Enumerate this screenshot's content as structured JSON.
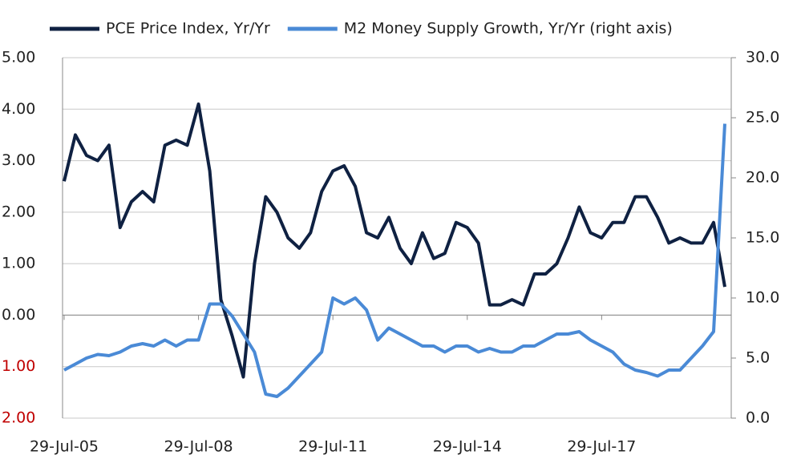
{
  "chart_data": {
    "type": "line",
    "categories": [
      "29-Jul-05",
      null,
      null,
      null,
      null,
      null,
      null,
      null,
      null,
      null,
      null,
      null,
      "29-Jul-08",
      null,
      null,
      null,
      null,
      null,
      null,
      null,
      null,
      null,
      null,
      null,
      "29-Jul-11",
      null,
      null,
      null,
      null,
      null,
      null,
      null,
      null,
      null,
      null,
      null,
      "29-Jul-14",
      null,
      null,
      null,
      null,
      null,
      null,
      null,
      null,
      null,
      null,
      null,
      "29-Jul-17",
      null,
      null,
      null,
      null,
      null,
      null,
      null,
      null,
      null,
      null,
      null
    ],
    "series": [
      {
        "name": "PCE Price Index, Yr/Yr",
        "color": "#0f2142",
        "axis": "y",
        "values": [
          2.6,
          3.5,
          3.1,
          3.0,
          3.3,
          1.7,
          2.2,
          2.4,
          2.2,
          3.3,
          3.4,
          3.3,
          4.1,
          2.8,
          0.3,
          -0.4,
          -1.2,
          1.0,
          2.3,
          2.0,
          1.5,
          1.3,
          1.6,
          2.4,
          2.8,
          2.9,
          2.5,
          1.6,
          1.5,
          1.9,
          1.3,
          1.0,
          1.6,
          1.1,
          1.2,
          1.8,
          1.7,
          1.4,
          0.2,
          0.2,
          0.3,
          0.2,
          0.8,
          0.8,
          1.0,
          1.5,
          2.1,
          1.6,
          1.5,
          1.8,
          1.8,
          2.3,
          2.3,
          1.9,
          1.4,
          1.5,
          1.4,
          1.4,
          1.8,
          0.55
        ]
      },
      {
        "name": "M2 Money Supply Growth, Yr/Yr (right axis)",
        "color": "#4a8ad6",
        "axis": "y2",
        "values": [
          4.0,
          4.5,
          5.0,
          5.3,
          5.2,
          5.5,
          6.0,
          6.2,
          6.0,
          6.5,
          6.0,
          6.5,
          6.5,
          9.5,
          9.5,
          8.5,
          7.0,
          5.5,
          2.0,
          1.8,
          2.5,
          3.5,
          4.5,
          5.5,
          10.0,
          9.5,
          10.0,
          9.0,
          6.5,
          7.5,
          7.0,
          6.5,
          6.0,
          6.0,
          5.5,
          6.0,
          6.0,
          5.5,
          5.8,
          5.5,
          5.5,
          6.0,
          6.0,
          6.5,
          7.0,
          7.0,
          7.2,
          6.5,
          6.0,
          5.5,
          4.5,
          4.0,
          3.8,
          3.5,
          4.0,
          4.0,
          5.0,
          6.0,
          7.2,
          24.5
        ]
      }
    ],
    "ylim": [
      -2,
      5
    ],
    "yticks": [
      {
        "value": 5,
        "label": "5.00"
      },
      {
        "value": 4,
        "label": "4.00"
      },
      {
        "value": 3,
        "label": "3.00"
      },
      {
        "value": 2,
        "label": "2.00"
      },
      {
        "value": 1,
        "label": "1.00"
      },
      {
        "value": 0,
        "label": "0.00"
      },
      {
        "value": -1,
        "label": "1.00"
      },
      {
        "value": -2,
        "label": "2.00"
      }
    ],
    "y2lim": [
      0,
      30
    ],
    "y2ticks": [
      {
        "value": 30,
        "label": "30.0"
      },
      {
        "value": 25,
        "label": "25.0"
      },
      {
        "value": 20,
        "label": "20.0"
      },
      {
        "value": 15,
        "label": "15.0"
      },
      {
        "value": 10,
        "label": "10.0"
      },
      {
        "value": 5,
        "label": "5.0"
      },
      {
        "value": 0,
        "label": "0.0"
      }
    ],
    "negative_tick_color": "#c00000",
    "grid": true,
    "legend": "top"
  }
}
